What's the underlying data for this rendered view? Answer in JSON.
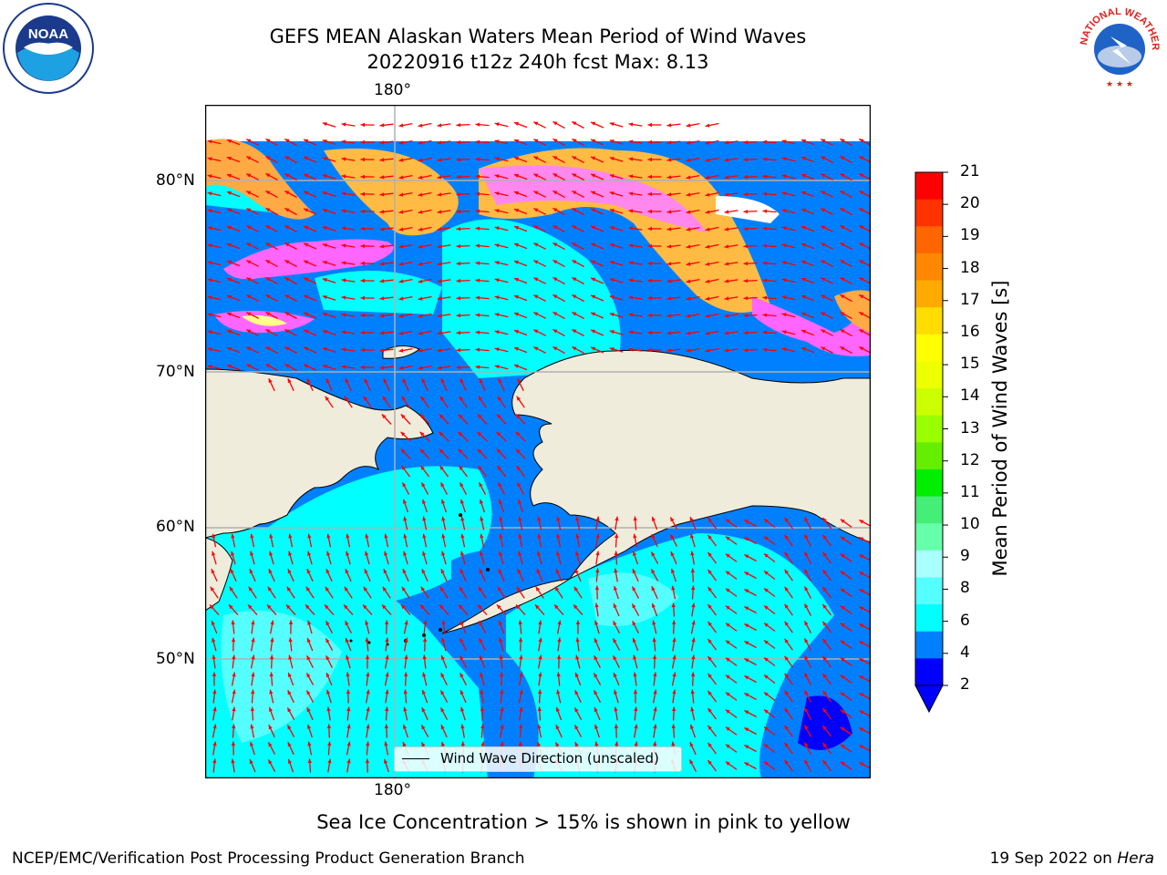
{
  "title": {
    "line1": "GEFS MEAN Alaskan Waters Mean Period of Wind Waves",
    "line2": "20220916 t12z 240h fcst   Max: 8.13"
  },
  "logos": {
    "left": {
      "icon": "noaa-logo-icon",
      "text": "NOAA"
    },
    "right": {
      "icon": "nws-logo-icon",
      "text": "NATIONAL WEATHER SERVICE"
    }
  },
  "map": {
    "lon_label_top": "180°",
    "lon_label_bottom": "180°",
    "lat_labels": [
      "80°N",
      "70°N",
      "60°N",
      "50°N"
    ],
    "legend_text": "Wind Wave Direction (unscaled)",
    "arrow_color": "#ff0000",
    "land_color": "#efecdc",
    "ocean_colors": {
      "2-4": "#0080ff",
      "4-6": "#00ffff",
      "6-8": "#55ffff",
      "ice": "#ff66ff"
    }
  },
  "colorbar": {
    "label": "Mean Period of Wind Waves [s]",
    "ticks": [
      "21",
      "20",
      "19",
      "18",
      "17",
      "16",
      "15",
      "14",
      "13",
      "12",
      "11",
      "10",
      "9",
      "8",
      "6",
      "4",
      "2"
    ],
    "colors": [
      "#ff0000",
      "#ff3300",
      "#ff6600",
      "#ff8800",
      "#ffaa00",
      "#ffdd00",
      "#ffff00",
      "#eeff00",
      "#ccff00",
      "#99ff00",
      "#66ee00",
      "#00ee00",
      "#44ee77",
      "#66ffaa",
      "#aaffff",
      "#55ffff",
      "#00ffff",
      "#0080ff",
      "#0000ff"
    ]
  },
  "notes": {
    "ice": "Sea Ice Concentration > 15% is shown in pink to yellow"
  },
  "footer": {
    "left": "NCEP/EMC/Verification Post Processing Product Generation Branch",
    "right_date": "19 Sep 2022 on ",
    "right_machine": "Hera"
  }
}
